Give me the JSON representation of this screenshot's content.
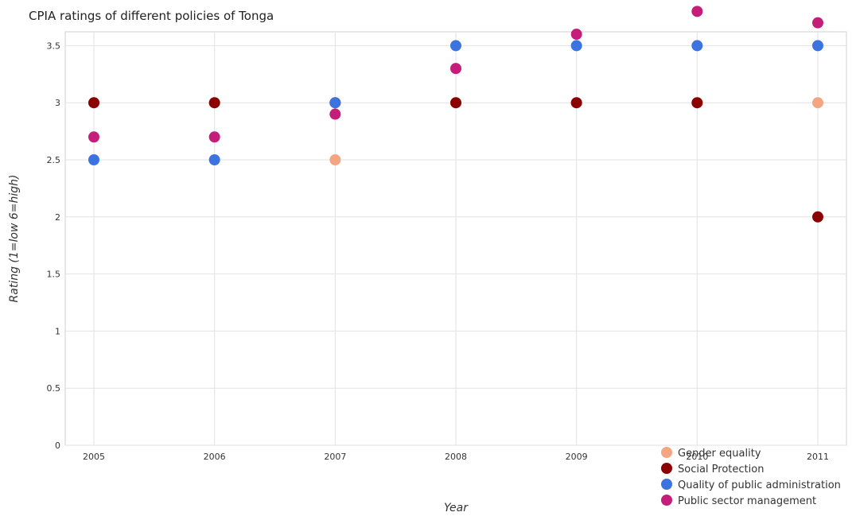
{
  "colors": {
    "Gender equality": "#f4a582",
    "Social Protection": "#8b0000",
    "Quality of public administration": "#3b74e0",
    "Public sector management": "#c41e7a"
  },
  "chart_data": {
    "type": "scatter",
    "title": "CPIA ratings of different policies of Tonga",
    "xlabel": "Year",
    "ylabel": "Rating (1=low 6=high)",
    "categories": [
      "2005",
      "2006",
      "2007",
      "2008",
      "2009",
      "2010",
      "2011"
    ],
    "ylim": [
      0,
      3.9
    ],
    "yticks": [
      "0",
      "0.5",
      "1",
      "1.5",
      "2",
      "2.5",
      "3",
      "3.5"
    ],
    "grid": true,
    "legend_position": "bottom-right",
    "series": [
      {
        "name": "Gender equality",
        "values": [
          3,
          3,
          2.5,
          3,
          3,
          3,
          3
        ]
      },
      {
        "name": "Social Protection",
        "values": [
          3,
          3,
          3,
          3,
          3,
          3,
          2
        ]
      },
      {
        "name": "Quality of public administration",
        "values": [
          2.5,
          2.5,
          3,
          3.5,
          3.5,
          3.5,
          3.5
        ]
      },
      {
        "name": "Public sector management",
        "values": [
          2.7,
          2.7,
          2.9,
          3.3,
          3.6,
          3.8,
          3.7
        ]
      }
    ]
  }
}
